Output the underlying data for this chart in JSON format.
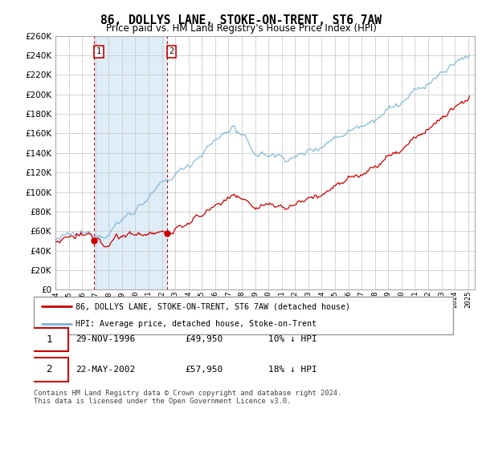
{
  "title": "86, DOLLYS LANE, STOKE-ON-TRENT, ST6 7AW",
  "subtitle": "Price paid vs. HM Land Registry's House Price Index (HPI)",
  "legend_line1": "86, DOLLYS LANE, STOKE-ON-TRENT, ST6 7AW (detached house)",
  "legend_line2": "HPI: Average price, detached house, Stoke-on-Trent",
  "transaction1_date": "29-NOV-1996",
  "transaction1_price": "£49,950",
  "transaction1_hpi": "10% ↓ HPI",
  "transaction2_date": "22-MAY-2002",
  "transaction2_price": "£57,950",
  "transaction2_hpi": "18% ↓ HPI",
  "footnote": "Contains HM Land Registry data © Crown copyright and database right 2024.\nThis data is licensed under the Open Government Licence v3.0.",
  "hpi_color": "#7ab4d8",
  "price_color": "#cc0000",
  "marker_color": "#cc0000",
  "shade_color": "#deedf7",
  "vline_color": "#cc0000",
  "grid_color": "#cccccc",
  "bg_color": "#ffffff",
  "ylim": [
    0,
    260000
  ],
  "ytick_step": 20000,
  "transaction1_x": 1996.91,
  "transaction1_y": 49950,
  "transaction2_x": 2002.38,
  "transaction2_y": 57950,
  "shade_x1": 1996.91,
  "shade_x2": 2002.38,
  "xmin": 1994.0,
  "xmax": 2025.5
}
